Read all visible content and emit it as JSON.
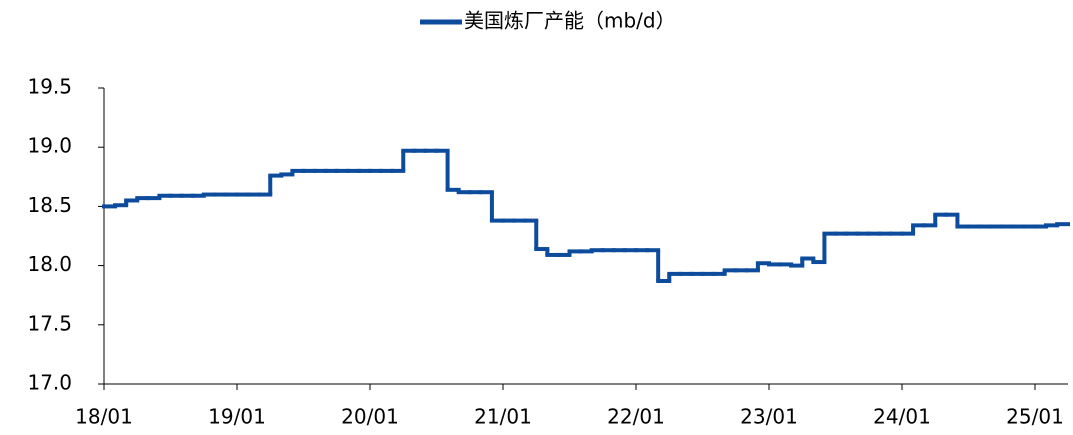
{
  "chart_data": {
    "type": "line",
    "step": true,
    "categories": [
      "18/01",
      null,
      null,
      null,
      null,
      null,
      null,
      null,
      null,
      null,
      null,
      null,
      "19/01",
      null,
      null,
      null,
      null,
      null,
      null,
      null,
      null,
      null,
      null,
      null,
      "20/01",
      null,
      null,
      null,
      null,
      null,
      null,
      null,
      null,
      null,
      null,
      null,
      "21/01",
      null,
      null,
      null,
      null,
      null,
      null,
      null,
      null,
      null,
      null,
      null,
      "22/01",
      null,
      null,
      null,
      null,
      null,
      null,
      null,
      null,
      null,
      null,
      null,
      "23/01",
      null,
      null,
      null,
      null,
      null,
      null,
      null,
      null,
      null,
      null,
      null,
      "24/01",
      null,
      null,
      null,
      null,
      null,
      null,
      null,
      null,
      null,
      null,
      null,
      "25/01",
      null,
      null
    ],
    "series": [
      {
        "name": "美国炼厂产能（mb/d）",
        "color": "#0d4b9c",
        "values": [
          18.5,
          18.51,
          18.55,
          18.57,
          18.57,
          18.59,
          18.59,
          18.59,
          18.59,
          18.6,
          18.6,
          18.6,
          18.6,
          18.6,
          18.6,
          18.76,
          18.77,
          18.8,
          18.8,
          18.8,
          18.8,
          18.8,
          18.8,
          18.8,
          18.8,
          18.8,
          18.8,
          18.97,
          18.97,
          18.97,
          18.97,
          18.64,
          18.62,
          18.62,
          18.62,
          18.38,
          18.38,
          18.38,
          18.38,
          18.14,
          18.09,
          18.09,
          18.12,
          18.12,
          18.13,
          18.13,
          18.13,
          18.13,
          18.13,
          18.13,
          17.87,
          17.93,
          17.93,
          17.93,
          17.93,
          17.93,
          17.96,
          17.96,
          17.96,
          18.02,
          18.01,
          18.01,
          18.0,
          18.06,
          18.03,
          18.27,
          18.27,
          18.27,
          18.27,
          18.27,
          18.27,
          18.27,
          18.27,
          18.34,
          18.34,
          18.43,
          18.43,
          18.33,
          18.33,
          18.33,
          18.33,
          18.33,
          18.33,
          18.33,
          18.33,
          18.34,
          18.35
        ]
      }
    ],
    "ylim": [
      17.0,
      19.5
    ],
    "yticks": [
      {
        "value": 17.0,
        "label": "17.0"
      },
      17.5,
      {
        "value": 18.0,
        "label": "18.0"
      },
      18.5,
      {
        "value": 19.0,
        "label": "19.0"
      },
      19.5
    ],
    "legend": "top"
  }
}
